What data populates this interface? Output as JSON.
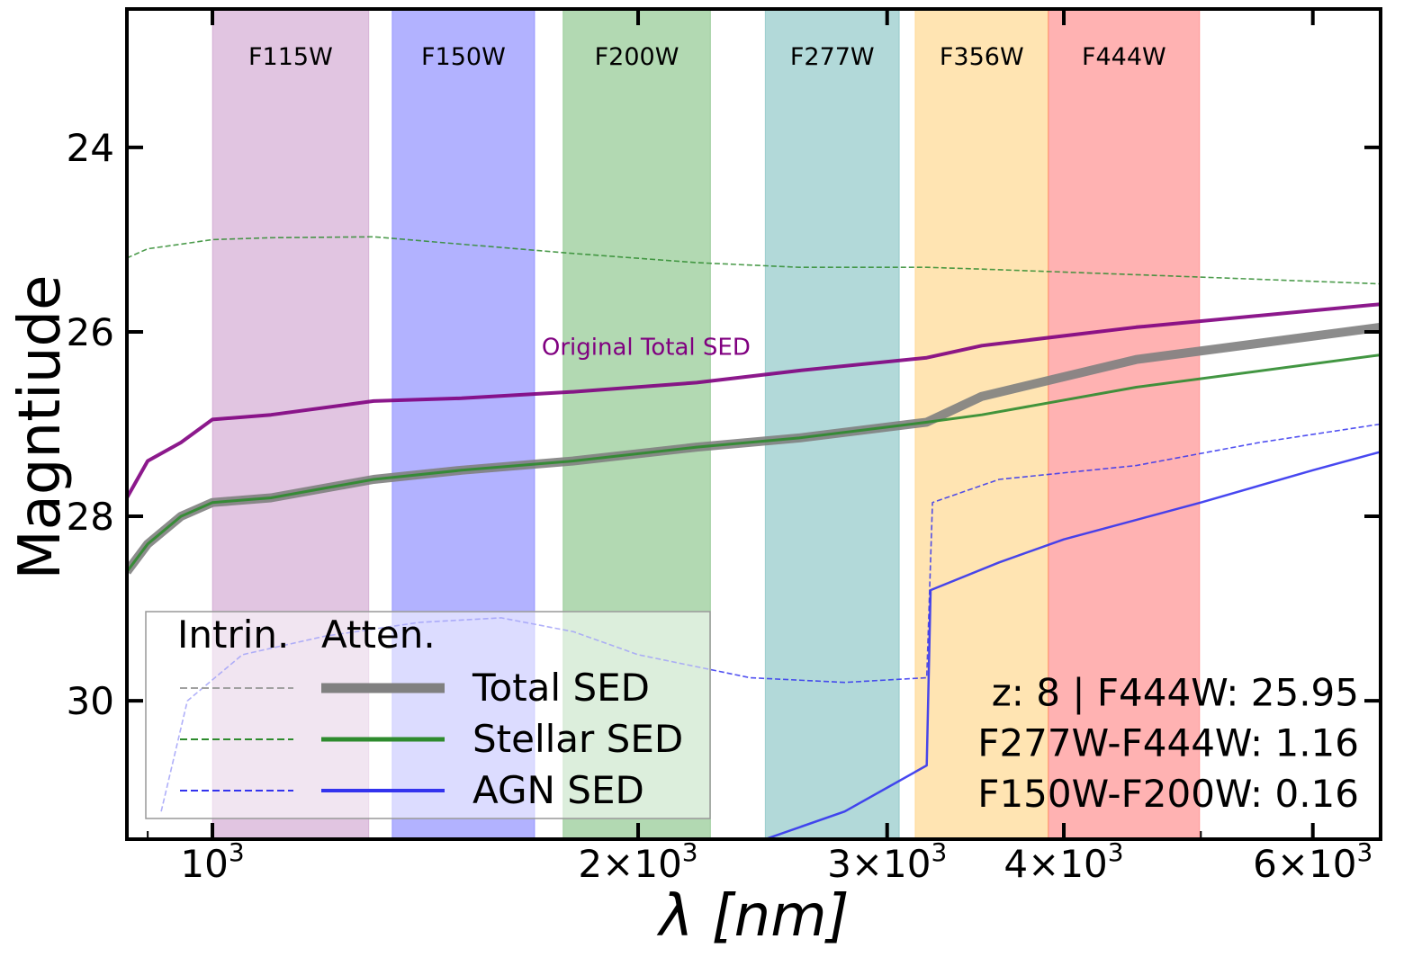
{
  "chart_data": {
    "type": "line",
    "xscale": "log",
    "xlabel": "λ [nm]",
    "ylabel": "Magntiude",
    "xlim": [
      870,
      6700
    ],
    "ylim": [
      31.5,
      22.5
    ],
    "x_ticks": [
      {
        "value": 1000,
        "base": "10",
        "exp": "3"
      },
      {
        "value": 2000,
        "mant": "2",
        "base": "10",
        "exp": "3"
      },
      {
        "value": 3000,
        "mant": "3",
        "base": "10",
        "exp": "3"
      },
      {
        "value": 4000,
        "mant": "4",
        "base": "10",
        "exp": "3"
      },
      {
        "value": 6000,
        "mant": "6",
        "base": "10",
        "exp": "3"
      }
    ],
    "y_ticks": [
      24,
      26,
      28,
      30
    ],
    "filters": [
      {
        "name": "F115W",
        "range": [
          1000,
          1290
        ],
        "color": "#9b3f9b"
      },
      {
        "name": "F150W",
        "range": [
          1340,
          1690
        ],
        "color": "#0000ff"
      },
      {
        "name": "F200W",
        "range": [
          1770,
          2250
        ],
        "color": "#008000"
      },
      {
        "name": "F277W",
        "range": [
          2460,
          3060
        ],
        "color": "#008080"
      },
      {
        "name": "F356W",
        "range": [
          3140,
          3900
        ],
        "color": "#ffa500"
      },
      {
        "name": "F444W",
        "range": [
          3900,
          4990
        ],
        "color": "#ff0000"
      }
    ],
    "series": [
      {
        "name": "Stellar SED (intrinsic)",
        "color": "#2e8b2e",
        "style": "dashed",
        "points": [
          [
            870,
            25.2
          ],
          [
            900,
            25.1
          ],
          [
            950,
            25.05
          ],
          [
            1000,
            25.0
          ],
          [
            1100,
            24.98
          ],
          [
            1300,
            24.97
          ],
          [
            1500,
            25.05
          ],
          [
            1800,
            25.15
          ],
          [
            2200,
            25.25
          ],
          [
            2600,
            25.3
          ],
          [
            3200,
            25.3
          ],
          [
            3500,
            25.32
          ],
          [
            4500,
            25.38
          ],
          [
            6700,
            25.48
          ]
        ]
      },
      {
        "name": "Original Total SED",
        "color": "#800080",
        "style": "solid",
        "points": [
          [
            870,
            27.8
          ],
          [
            900,
            27.4
          ],
          [
            950,
            27.2
          ],
          [
            1000,
            26.95
          ],
          [
            1100,
            26.9
          ],
          [
            1300,
            26.75
          ],
          [
            1500,
            26.72
          ],
          [
            1800,
            26.65
          ],
          [
            2200,
            26.55
          ],
          [
            2600,
            26.42
          ],
          [
            3200,
            26.28
          ],
          [
            3500,
            26.15
          ],
          [
            4500,
            25.95
          ],
          [
            6700,
            25.7
          ]
        ]
      },
      {
        "name": "Total SED",
        "color": "#808080",
        "style": "solid",
        "points": [
          [
            870,
            28.6
          ],
          [
            900,
            28.3
          ],
          [
            950,
            28.0
          ],
          [
            1000,
            27.85
          ],
          [
            1100,
            27.8
          ],
          [
            1300,
            27.6
          ],
          [
            1500,
            27.5
          ],
          [
            1800,
            27.4
          ],
          [
            2200,
            27.25
          ],
          [
            2600,
            27.15
          ],
          [
            3200,
            26.98
          ],
          [
            3500,
            26.7
          ],
          [
            4500,
            26.3
          ],
          [
            6700,
            25.95
          ]
        ]
      },
      {
        "name": "Stellar SED",
        "color": "#2e8b2e",
        "style": "solid",
        "points": [
          [
            870,
            28.6
          ],
          [
            900,
            28.3
          ],
          [
            950,
            28.0
          ],
          [
            1000,
            27.85
          ],
          [
            1100,
            27.8
          ],
          [
            1300,
            27.6
          ],
          [
            1500,
            27.5
          ],
          [
            1800,
            27.4
          ],
          [
            2200,
            27.25
          ],
          [
            2600,
            27.15
          ],
          [
            3200,
            26.98
          ],
          [
            3500,
            26.9
          ],
          [
            4500,
            26.6
          ],
          [
            6700,
            26.25
          ]
        ]
      },
      {
        "name": "AGN SED (intrinsic)",
        "color": "#3333ee",
        "style": "dashed",
        "points": [
          [
            920,
            31.2
          ],
          [
            960,
            30.0
          ],
          [
            1050,
            29.5
          ],
          [
            1200,
            29.3
          ],
          [
            1400,
            29.15
          ],
          [
            1600,
            29.1
          ],
          [
            1800,
            29.25
          ],
          [
            2000,
            29.5
          ],
          [
            2400,
            29.75
          ],
          [
            2800,
            29.8
          ],
          [
            3200,
            29.75
          ],
          [
            3230,
            27.85
          ],
          [
            3600,
            27.6
          ],
          [
            4500,
            27.45
          ],
          [
            5500,
            27.2
          ],
          [
            6700,
            27.0
          ]
        ]
      },
      {
        "name": "AGN SED",
        "color": "#3333ee",
        "style": "solid",
        "points": [
          [
            2460,
            31.5
          ],
          [
            2800,
            31.2
          ],
          [
            3200,
            30.7
          ],
          [
            3220,
            28.8
          ],
          [
            3600,
            28.5
          ],
          [
            4000,
            28.25
          ],
          [
            5000,
            27.85
          ],
          [
            6000,
            27.5
          ],
          [
            6700,
            27.3
          ]
        ]
      }
    ],
    "annotations": [
      {
        "text": "Original Total SED",
        "color": "#800080",
        "x": 2050,
        "y": 26.25
      },
      {
        "text": "z: 8 | F444W: 25.95",
        "x": 6700,
        "y": 30.05
      },
      {
        "text": "F277W-F444W: 1.16",
        "x": 6700,
        "y": 30.6
      },
      {
        "text": "F150W-F200W: 0.16",
        "x": 6700,
        "y": 31.15
      }
    ],
    "legend": {
      "location": "lower-left",
      "header_intrinsic": "Intrin.",
      "header_attenuated": "Atten.",
      "entries": [
        {
          "label": "Total SED",
          "intrinsic_color": "#a0a0a0",
          "attenuated_color": "#808080"
        },
        {
          "label": "Stellar SED",
          "intrinsic_color": "#2e8b2e",
          "attenuated_color": "#2e8b2e"
        },
        {
          "label": "AGN SED",
          "intrinsic_color": "#3333ee",
          "attenuated_color": "#3333ee"
        }
      ]
    }
  }
}
